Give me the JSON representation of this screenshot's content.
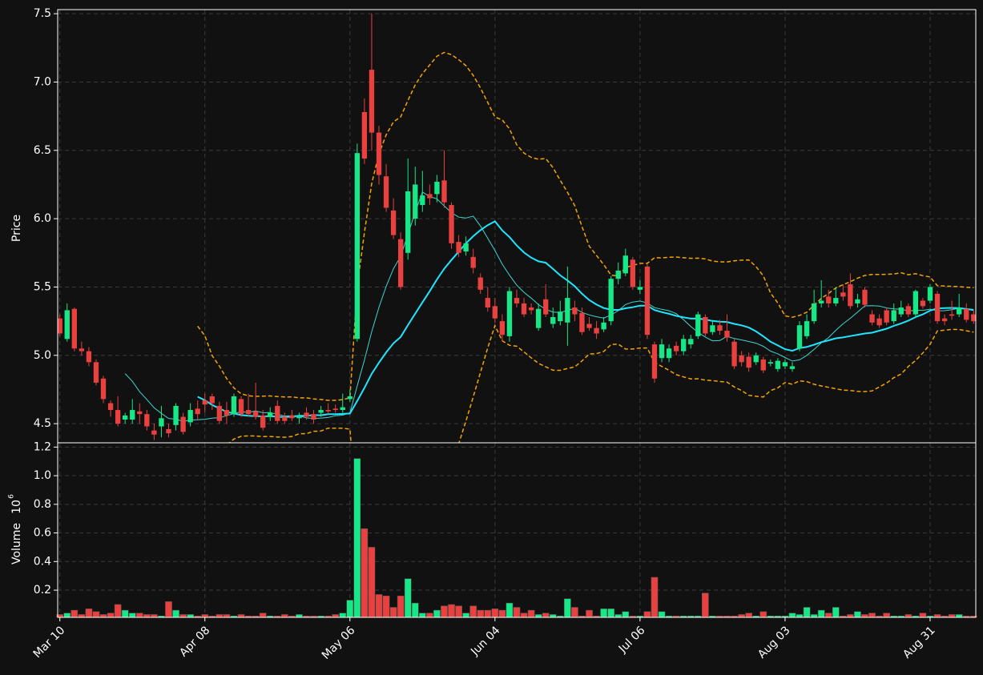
{
  "chart_data": {
    "type": "candlestick",
    "y_label": "Price",
    "volume_label": "Volume",
    "volume_scale": {
      "base": "10",
      "exponent": "6"
    },
    "up_color": "#16e887",
    "down_color": "#e8413f",
    "grid": true,
    "xlim": [
      -0.3,
      126.3
    ],
    "xticks": [
      {
        "value": 0,
        "label": "Mar 10"
      },
      {
        "value": 20,
        "label": "Apr 08"
      },
      {
        "value": 40,
        "label": "May 06"
      },
      {
        "value": 60,
        "label": "Jun 04"
      },
      {
        "value": 80,
        "label": "Jul 06"
      },
      {
        "value": 100,
        "label": "Aug 03"
      },
      {
        "value": 120,
        "label": "Aug 31"
      }
    ],
    "ylim": [
      4.36,
      7.53
    ],
    "yticks": [
      4.5,
      {
        "value": 5,
        "label": "5.0"
      },
      5.5,
      {
        "value": 6,
        "label": "6.0"
      },
      6.5,
      {
        "value": 7,
        "label": "7.0"
      },
      7.5
    ],
    "volume_ylim": [
      0.01,
      1.23
    ],
    "volume_yticks": [
      0.2,
      0.4,
      0.6,
      0.8,
      {
        "value": 1,
        "label": "1.0"
      },
      1.2
    ],
    "moving_averages": [
      {
        "period": 10,
        "color": "#3fd6d0",
        "width": 1
      },
      {
        "period": 20,
        "color": "#1ee6ff",
        "width": 2
      }
    ],
    "bollinger": {
      "period": 20,
      "std": 2,
      "color": "#f5a300"
    },
    "open": [
      5.27,
      5.12,
      5.34,
      5.05,
      5.03,
      4.95,
      4.83,
      4.65,
      4.6,
      4.53,
      4.53,
      4.59,
      4.57,
      4.45,
      4.48,
      4.46,
      4.49,
      4.55,
      4.51,
      4.61,
      4.67,
      4.7,
      4.63,
      4.6,
      4.57,
      4.68,
      4.6,
      4.59,
      4.56,
      4.55,
      4.63,
      4.55,
      4.56,
      4.54,
      4.58,
      4.57,
      4.58,
      4.6,
      4.61,
      4.6,
      4.68,
      5.12,
      6.78,
      7.09,
      6.63,
      6.31,
      6.06,
      5.85,
      5.75,
      6.0,
      6.1,
      6.18,
      6.18,
      6.28,
      6.1,
      5.83,
      5.76,
      5.72,
      5.57,
      5.42,
      5.36,
      5.25,
      5.14,
      5.42,
      5.38,
      5.35,
      5.2,
      5.41,
      5.23,
      5.25,
      5.24,
      5.35,
      5.31,
      5.23,
      5.2,
      5.19,
      5.25,
      5.56,
      5.6,
      5.7,
      5.48,
      5.65,
      5.08,
      4.98,
      4.98,
      5.07,
      5.03,
      5.08,
      5.14,
      5.28,
      5.17,
      5.22,
      5.18,
      5.1,
      5.0,
      4.99,
      4.95,
      4.97,
      4.94,
      4.9,
      4.92,
      4.9,
      5.05,
      5.14,
      5.25,
      5.38,
      5.43,
      5.38,
      5.46,
      5.52,
      5.38,
      5.48,
      5.3,
      5.27,
      5.33,
      5.25,
      5.3,
      5.36,
      5.3,
      5.4,
      5.4,
      5.45,
      5.27,
      5.3,
      5.3,
      5.34,
      5.3
    ],
    "high": [
      5.3,
      5.38,
      5.35,
      5.1,
      5.06,
      4.97,
      4.85,
      4.67,
      4.7,
      4.58,
      4.68,
      4.65,
      4.6,
      4.5,
      4.63,
      4.5,
      4.65,
      4.58,
      4.65,
      4.67,
      4.72,
      4.72,
      4.66,
      4.66,
      4.72,
      4.7,
      4.72,
      4.8,
      4.6,
      4.62,
      4.67,
      4.58,
      4.6,
      4.58,
      4.62,
      4.6,
      4.63,
      4.65,
      4.64,
      4.72,
      4.75,
      6.55,
      6.88,
      7.5,
      6.68,
      6.4,
      6.15,
      5.9,
      6.44,
      6.38,
      6.35,
      6.25,
      6.32,
      6.5,
      6.12,
      5.88,
      5.87,
      5.78,
      5.6,
      5.5,
      5.42,
      5.3,
      5.5,
      5.48,
      5.42,
      5.38,
      5.38,
      5.52,
      5.35,
      5.4,
      5.65,
      5.4,
      5.35,
      5.28,
      5.25,
      5.28,
      5.58,
      5.68,
      5.78,
      5.72,
      5.55,
      5.67,
      5.1,
      5.12,
      5.08,
      5.1,
      5.15,
      5.15,
      5.32,
      5.3,
      5.25,
      5.26,
      5.3,
      5.12,
      5.03,
      5.02,
      5.02,
      4.99,
      4.97,
      4.98,
      4.97,
      4.95,
      5.25,
      5.3,
      5.48,
      5.55,
      5.48,
      5.5,
      5.52,
      5.6,
      5.45,
      5.5,
      5.33,
      5.3,
      5.35,
      5.38,
      5.4,
      5.38,
      5.48,
      5.42,
      5.52,
      5.47,
      5.3,
      5.4,
      5.45,
      5.38,
      5.33
    ],
    "low": [
      5.14,
      5.1,
      5.03,
      5.0,
      4.92,
      4.78,
      4.65,
      4.55,
      4.48,
      4.5,
      4.5,
      4.5,
      4.45,
      4.38,
      4.4,
      4.4,
      4.45,
      4.42,
      4.48,
      4.53,
      4.58,
      4.6,
      4.5,
      4.5,
      4.55,
      4.55,
      4.55,
      4.53,
      4.45,
      4.52,
      4.5,
      4.5,
      4.52,
      4.5,
      4.53,
      4.5,
      4.55,
      4.57,
      4.58,
      4.58,
      4.66,
      5.1,
      6.4,
      6.5,
      6.25,
      6.05,
      5.85,
      5.48,
      5.7,
      5.95,
      6.05,
      6.1,
      6.12,
      6.08,
      5.78,
      5.72,
      5.73,
      5.6,
      5.45,
      5.32,
      5.24,
      5.1,
      5.1,
      5.35,
      5.28,
      5.3,
      5.18,
      5.28,
      5.2,
      5.22,
      5.07,
      5.25,
      5.15,
      5.18,
      5.12,
      5.17,
      5.22,
      5.52,
      5.58,
      5.48,
      5.45,
      5.12,
      4.8,
      4.95,
      4.95,
      5.0,
      5.0,
      5.05,
      5.12,
      5.14,
      5.15,
      5.15,
      5.1,
      4.9,
      4.92,
      4.88,
      4.93,
      4.87,
      4.92,
      4.88,
      4.9,
      4.88,
      5.03,
      5.12,
      5.23,
      5.35,
      5.35,
      5.36,
      5.4,
      5.34,
      5.35,
      5.35,
      5.22,
      5.2,
      5.22,
      5.23,
      5.28,
      5.28,
      5.28,
      5.34,
      5.38,
      5.23,
      5.22,
      5.26,
      5.28,
      5.24,
      5.23
    ],
    "close": [
      5.16,
      5.33,
      5.05,
      5.03,
      4.95,
      4.8,
      4.68,
      4.6,
      4.5,
      4.56,
      4.6,
      4.57,
      4.48,
      4.42,
      4.54,
      4.43,
      4.63,
      4.44,
      4.6,
      4.57,
      4.64,
      4.65,
      4.52,
      4.56,
      4.7,
      4.57,
      4.57,
      4.55,
      4.47,
      4.58,
      4.52,
      4.52,
      4.54,
      4.55,
      4.55,
      4.53,
      4.6,
      4.59,
      4.6,
      4.62,
      4.7,
      6.48,
      6.44,
      6.63,
      6.32,
      6.08,
      5.88,
      5.5,
      6.2,
      6.25,
      6.17,
      6.15,
      6.27,
      6.12,
      5.82,
      5.75,
      5.82,
      5.64,
      5.48,
      5.35,
      5.27,
      5.15,
      5.47,
      5.38,
      5.3,
      5.33,
      5.34,
      5.3,
      5.28,
      5.32,
      5.42,
      5.3,
      5.17,
      5.2,
      5.16,
      5.24,
      5.56,
      5.62,
      5.73,
      5.5,
      5.5,
      5.15,
      4.83,
      5.08,
      5.05,
      5.03,
      5.12,
      5.12,
      5.3,
      5.16,
      5.22,
      5.18,
      5.13,
      4.92,
      4.95,
      4.91,
      5.0,
      4.89,
      4.95,
      4.96,
      4.95,
      4.92,
      5.22,
      5.25,
      5.38,
      5.4,
      5.38,
      5.42,
      5.43,
      5.36,
      5.41,
      5.37,
      5.24,
      5.22,
      5.24,
      5.33,
      5.35,
      5.3,
      5.47,
      5.36,
      5.5,
      5.25,
      5.25,
      5.29,
      5.35,
      5.26,
      5.25
    ],
    "volume": [
      0.03,
      0.04,
      0.06,
      0.03,
      0.07,
      0.05,
      0.03,
      0.04,
      0.1,
      0.06,
      0.04,
      0.04,
      0.03,
      0.03,
      0.02,
      0.12,
      0.06,
      0.03,
      0.03,
      0.02,
      0.03,
      0.02,
      0.03,
      0.03,
      0.02,
      0.03,
      0.02,
      0.02,
      0.04,
      0.02,
      0.02,
      0.03,
      0.02,
      0.03,
      0.02,
      0.02,
      0.02,
      0.02,
      0.03,
      0.04,
      0.13,
      1.12,
      0.63,
      0.5,
      0.17,
      0.16,
      0.08,
      0.16,
      0.28,
      0.11,
      0.04,
      0.04,
      0.06,
      0.09,
      0.1,
      0.09,
      0.04,
      0.09,
      0.06,
      0.06,
      0.07,
      0.06,
      0.11,
      0.08,
      0.04,
      0.06,
      0.03,
      0.04,
      0.03,
      0.02,
      0.14,
      0.08,
      0.02,
      0.06,
      0.02,
      0.07,
      0.07,
      0.03,
      0.05,
      0.02,
      0.02,
      0.05,
      0.29,
      0.05,
      0.02,
      0.02,
      0.02,
      0.02,
      0.02,
      0.18,
      0.02,
      0.02,
      0.02,
      0.02,
      0.03,
      0.04,
      0.02,
      0.05,
      0.02,
      0.02,
      0.02,
      0.04,
      0.03,
      0.08,
      0.03,
      0.06,
      0.04,
      0.08,
      0.02,
      0.03,
      0.05,
      0.03,
      0.04,
      0.02,
      0.04,
      0.02,
      0.02,
      0.03,
      0.02,
      0.04,
      0.02,
      0.03,
      0.02,
      0.03,
      0.03,
      0.02,
      0.02
    ]
  }
}
